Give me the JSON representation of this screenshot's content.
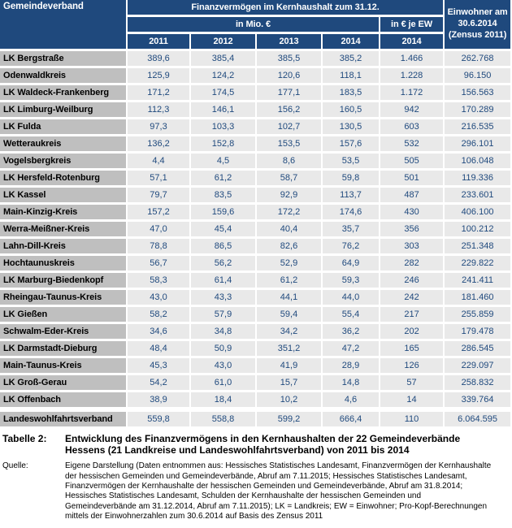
{
  "colors": {
    "header_bg": "#1F497D",
    "header_text": "#FFFFFF",
    "label_bg": "#BFBFBF",
    "cell_bg": "#E9E9E9",
    "value_text": "#1F497D",
    "body_text": "#000000"
  },
  "table": {
    "header": {
      "gemeindeverband": "Gemeindeverband",
      "finanzvermoegen": "Finanzvermögen im Kernhaushalt zum 31.12.",
      "in_mio": "in Mio. €",
      "in_eur_je_ew": "in € je EW",
      "einwohner": "Einwohner am 30.6.2014 (Zensus 2011)",
      "years": [
        "2011",
        "2012",
        "2013",
        "2014",
        "2014"
      ],
      "col_keys": [
        "2011-mio",
        "2012-mio",
        "2013-mio",
        "2014-mio",
        "2014-eur-je-ew",
        "einwohner-2014"
      ]
    },
    "rows": [
      {
        "name": "LK Bergstraße",
        "values": [
          "389,6",
          "385,4",
          "385,5",
          "385,2",
          "1.466",
          "262.768"
        ]
      },
      {
        "name": "Odenwaldkreis",
        "values": [
          "125,9",
          "124,2",
          "120,6",
          "118,1",
          "1.228",
          "96.150"
        ]
      },
      {
        "name": "LK Waldeck-Frankenberg",
        "values": [
          "171,2",
          "174,5",
          "177,1",
          "183,5",
          "1.172",
          "156.563"
        ]
      },
      {
        "name": "LK Limburg-Weilburg",
        "values": [
          "112,3",
          "146,1",
          "156,2",
          "160,5",
          "942",
          "170.289"
        ]
      },
      {
        "name": "LK Fulda",
        "values": [
          "97,3",
          "103,3",
          "102,7",
          "130,5",
          "603",
          "216.535"
        ]
      },
      {
        "name": "Wetteraukreis",
        "values": [
          "136,2",
          "152,8",
          "153,5",
          "157,6",
          "532",
          "296.101"
        ]
      },
      {
        "name": "Vogelsbergkreis",
        "values": [
          "4,4",
          "4,5",
          "8,6",
          "53,5",
          "505",
          "106.048"
        ]
      },
      {
        "name": "LK Hersfeld-Rotenburg",
        "values": [
          "57,1",
          "61,2",
          "58,7",
          "59,8",
          "501",
          "119.336"
        ]
      },
      {
        "name": "LK Kassel",
        "values": [
          "79,7",
          "83,5",
          "92,9",
          "113,7",
          "487",
          "233.601"
        ]
      },
      {
        "name": "Main-Kinzig-Kreis",
        "values": [
          "157,2",
          "159,6",
          "172,2",
          "174,6",
          "430",
          "406.100"
        ]
      },
      {
        "name": "Werra-Meißner-Kreis",
        "values": [
          "47,0",
          "45,4",
          "40,4",
          "35,7",
          "356",
          "100.212"
        ]
      },
      {
        "name": "Lahn-Dill-Kreis",
        "values": [
          "78,8",
          "86,5",
          "82,6",
          "76,2",
          "303",
          "251.348"
        ]
      },
      {
        "name": "Hochtaunuskreis",
        "values": [
          "56,7",
          "56,2",
          "52,9",
          "64,9",
          "282",
          "229.822"
        ]
      },
      {
        "name": "LK Marburg-Biedenkopf",
        "values": [
          "58,3",
          "61,4",
          "61,2",
          "59,3",
          "246",
          "241.411"
        ]
      },
      {
        "name": "Rheingau-Taunus-Kreis",
        "values": [
          "43,0",
          "43,3",
          "44,1",
          "44,0",
          "242",
          "181.460"
        ]
      },
      {
        "name": "LK Gießen",
        "values": [
          "58,2",
          "57,9",
          "59,4",
          "55,4",
          "217",
          "255.859"
        ]
      },
      {
        "name": "Schwalm-Eder-Kreis",
        "values": [
          "34,6",
          "34,8",
          "34,2",
          "36,2",
          "202",
          "179.478"
        ]
      },
      {
        "name": "LK Darmstadt-Dieburg",
        "values": [
          "48,4",
          "50,9",
          "351,2",
          "47,2",
          "165",
          "286.545"
        ]
      },
      {
        "name": "Main-Taunus-Kreis",
        "values": [
          "45,3",
          "43,0",
          "41,9",
          "28,9",
          "126",
          "229.097"
        ]
      },
      {
        "name": "LK Groß-Gerau",
        "values": [
          "54,2",
          "61,0",
          "15,7",
          "14,8",
          "57",
          "258.832"
        ]
      },
      {
        "name": "LK Offenbach",
        "values": [
          "38,9",
          "18,4",
          "10,2",
          "4,6",
          "14",
          "339.764"
        ]
      }
    ],
    "total_row": {
      "name": "Landeswohlfahrtsverband",
      "values": [
        "559,8",
        "558,8",
        "599,2",
        "666,4",
        "110",
        "6.064.595"
      ]
    }
  },
  "caption": {
    "label": "Tabelle 2:",
    "text": "Entwicklung des Finanzvermögens in den Kernhaushalten der 22 Gemeindeverbände Hessens (21 Landkreise und Landeswohlfahrtsverband) von 2011 bis 2014"
  },
  "source": {
    "label": "Quelle:",
    "text": "Eigene Darstellung (Daten entnommen aus: Hessisches Statistisches Landesamt, Finanzvermögen der Kernhaushalte der hessischen Gemeinden und Gemeindeverbände, Abruf am 7.11.2015; Hessisches Statistisches Landesamt, Finanzvermögen der Kernhaushalte der hessischen Gemeinden und Gemeindeverbände, Abruf am 31.8.2014; Hessisches Statistisches Landesamt, Schulden der Kernhaushalte der hessischen Gemeinden und Gemeindeverbände am 31.12.2014, Abruf am 7.11.2015); LK = Landkreis; EW = Einwohner; Pro-Kopf-Berechnungen mittels der Einwohnerzahlen zum 30.6.2014 auf Basis des Zensus 2011"
  }
}
